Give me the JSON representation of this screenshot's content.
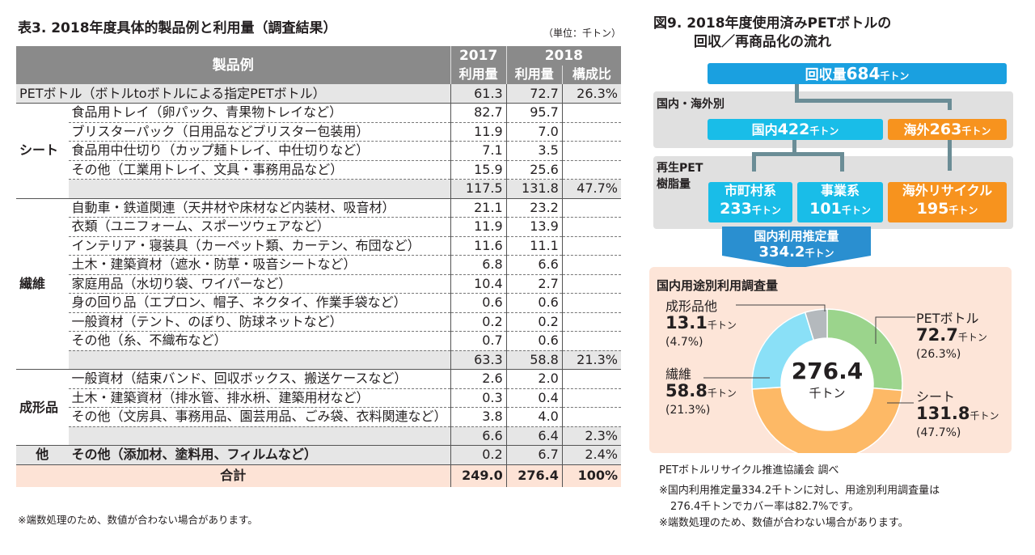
{
  "table": {
    "title": "表3. 2018年度具体的製品例と利用量（調査結果）",
    "unit": "（単位：千トン）",
    "headers": {
      "product": "製品例",
      "y2017": "2017",
      "y2018": "2018",
      "usage2017": "利用量",
      "usage2018": "利用量",
      "ratio": "構成比"
    },
    "pet": {
      "name": "PETボトル（ボトルtoボトルによる指定PETボトル）",
      "v2017": "61.3",
      "v2018": "72.7",
      "ratio": "26.3%"
    },
    "sheet": {
      "category": "シート",
      "rows": [
        {
          "name": "食品用トレイ（卵パック、青果物トレイなど）",
          "v2017": "82.7",
          "v2018": "95.7"
        },
        {
          "name": "ブリスターパック（日用品などブリスター包装用）",
          "v2017": "11.9",
          "v2018": "7.0"
        },
        {
          "name": "食品用中仕切り（カップ麺トレイ、中仕切りなど）",
          "v2017": "7.1",
          "v2018": "3.5"
        },
        {
          "name": "その他（工業用トレイ、文具・事務用品など）",
          "v2017": "15.9",
          "v2018": "25.6"
        }
      ],
      "subtotal": {
        "v2017": "117.5",
        "v2018": "131.8",
        "ratio": "47.7%"
      }
    },
    "fiber": {
      "category": "繊維",
      "rows": [
        {
          "name": "自動車・鉄道関連（天井材や床材など内装材、吸音材）",
          "v2017": "21.1",
          "v2018": "23.2"
        },
        {
          "name": "衣類（ユニフォーム、スポーツウェアなど）",
          "v2017": "11.9",
          "v2018": "13.9"
        },
        {
          "name": "インテリア・寝装具（カーペット類、カーテン、布団など）",
          "v2017": "11.6",
          "v2018": "11.1"
        },
        {
          "name": "土木・建築資材（遮水・防草・吸音シートなど）",
          "v2017": "6.8",
          "v2018": "6.6"
        },
        {
          "name": "家庭用品（水切り袋、ワイパーなど）",
          "v2017": "10.4",
          "v2018": "2.7"
        },
        {
          "name": "身の回り品（エプロン、帽子、ネクタイ、作業手袋など）",
          "v2017": "0.6",
          "v2018": "0.6"
        },
        {
          "name": "一般資材（テント、のぼり、防球ネットなど）",
          "v2017": "0.2",
          "v2018": "0.2"
        },
        {
          "name": "その他（糸、不織布など）",
          "v2017": "0.7",
          "v2018": "0.6"
        }
      ],
      "subtotal": {
        "v2017": "63.3",
        "v2018": "58.8",
        "ratio": "21.3%"
      }
    },
    "molded": {
      "category": "成形品",
      "rows": [
        {
          "name": "一般資材（結束バンド、回収ボックス、搬送ケースなど）",
          "v2017": "2.6",
          "v2018": "2.0"
        },
        {
          "name": "土木・建築資材（排水管、排水枡、建築用材など）",
          "v2017": "0.3",
          "v2018": "0.4"
        },
        {
          "name": "その他（文房具、事務用品、園芸用品、ごみ袋、衣料関連など）",
          "v2017": "3.8",
          "v2018": "4.0"
        }
      ],
      "subtotal": {
        "v2017": "6.6",
        "v2018": "6.4",
        "ratio": "2.3%"
      }
    },
    "other": {
      "category": "他",
      "name": "その他（添加材、塗料用、フィルムなど）",
      "v2017": "0.2",
      "v2018": "6.7",
      "ratio": "2.4%"
    },
    "total": {
      "label": "合計",
      "v2017": "249.0",
      "v2018": "276.4",
      "ratio": "100%"
    },
    "note": "※端数処理のため、数値が合わない場合があります。"
  },
  "diagram": {
    "title1": "図9. 2018年度使用済みPETボトルの",
    "title2": "回収／再商品化の流れ",
    "unit": "千トン",
    "collected": {
      "label": "回収量",
      "value": "684"
    },
    "split_label": "国内・海外別",
    "domestic": {
      "label": "国内",
      "value": "422"
    },
    "overseas": {
      "label": "海外",
      "value": "263"
    },
    "resin_label1": "再生PET",
    "resin_label2": "樹脂量",
    "municipal": {
      "label": "市町村系",
      "value": "233"
    },
    "business": {
      "label": "事業系",
      "value": "101"
    },
    "overseas_recycle": {
      "label": "海外リサイクル",
      "value": "195"
    },
    "domestic_est": {
      "label": "国内利用推定量",
      "value": "334.2"
    },
    "survey_title": "国内用途別利用調査量",
    "center": {
      "value": "276.4",
      "unit": "千トン"
    },
    "source": "PETボトルリサイクル推進協議会 調べ",
    "note1": "※国内利用推定量334.2千トンに対し、用途別利用調査量は",
    "note2": "276.4千トンでカバー率は82.7%です。",
    "note3": "※端数処理のため、数値が合わない場合があります。",
    "colors": {
      "pet": "#9bd48c",
      "sheet": "#fdb966",
      "fiber": "#8ae0f7",
      "other": "#b4b9bd",
      "blue": "#1aa0e0",
      "orange": "#f7931e"
    }
  },
  "chart_data": {
    "type": "pie",
    "title": "国内用途別利用調査量",
    "categories": [
      "PETボトル",
      "シート",
      "繊維",
      "成形品他"
    ],
    "values": [
      72.7,
      131.8,
      58.8,
      13.1
    ],
    "percent_labels": [
      "(26.3%)",
      "(47.7%)",
      "(21.3%)",
      "(4.7%)"
    ],
    "value_labels": [
      "72.7",
      "131.8",
      "58.8",
      "13.1"
    ],
    "unit": "千トン",
    "total": "276.4"
  }
}
